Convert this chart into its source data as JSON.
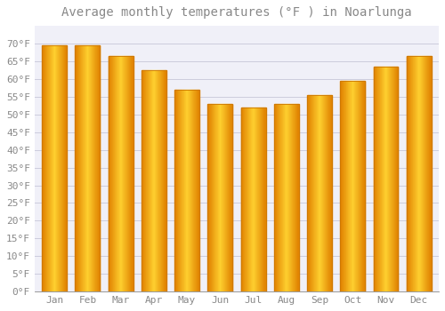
{
  "title": "Average monthly temperatures (°F ) in Noarlunga",
  "months": [
    "Jan",
    "Feb",
    "Mar",
    "Apr",
    "May",
    "Jun",
    "Jul",
    "Aug",
    "Sep",
    "Oct",
    "Nov",
    "Dec"
  ],
  "values": [
    69.5,
    69.5,
    66.5,
    62.5,
    57.0,
    53.0,
    52.0,
    53.0,
    55.5,
    59.5,
    63.5,
    66.5
  ],
  "bar_color_left": "#F5A800",
  "bar_color_center": "#FFD060",
  "bar_color_right": "#E08000",
  "bar_edge_color": "#CC7700",
  "background_color": "#FFFFFF",
  "plot_bg_color": "#F0F0F8",
  "grid_color": "#CCCCDD",
  "text_color": "#888888",
  "ylim": [
    0,
    75
  ],
  "yticks": [
    0,
    5,
    10,
    15,
    20,
    25,
    30,
    35,
    40,
    45,
    50,
    55,
    60,
    65,
    70
  ],
  "title_fontsize": 10,
  "tick_fontsize": 8,
  "bar_width": 0.75
}
